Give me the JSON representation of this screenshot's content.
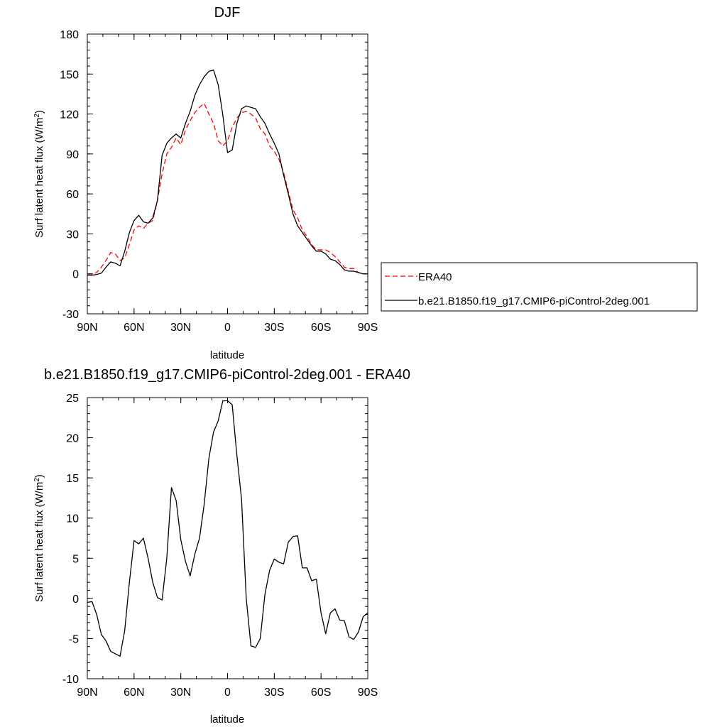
{
  "chart_data": [
    {
      "type": "line",
      "title": "DJF",
      "xlabel": "latitude",
      "ylabel": "Surf latent heat flux (W/m",
      "ylabel_sup": "2",
      "ylabel_close": ")",
      "xlim": [
        90,
        -90
      ],
      "ylim": [
        -30,
        180
      ],
      "yticks": [
        -30,
        0,
        30,
        60,
        90,
        120,
        150,
        180
      ],
      "xticks": [
        90,
        60,
        30,
        0,
        -30,
        -60,
        -90
      ],
      "xticklabels": [
        "90N",
        "60N",
        "30N",
        "0",
        "30S",
        "60S",
        "90S"
      ],
      "legend": "right",
      "series": [
        {
          "name": "ERA40",
          "color": "#ff0000",
          "dash": true,
          "x": [
            90,
            87,
            84,
            81,
            78,
            75,
            72,
            69,
            66,
            63,
            60,
            57,
            54,
            51,
            48,
            45,
            42,
            39,
            36,
            33,
            30,
            27,
            24,
            21,
            18,
            15,
            12,
            9,
            6,
            3,
            0,
            -3,
            -6,
            -9,
            -12,
            -15,
            -18,
            -21,
            -24,
            -27,
            -30,
            -33,
            -36,
            -39,
            -42,
            -45,
            -48,
            -51,
            -54,
            -57,
            -60,
            -63,
            -66,
            -69,
            -72,
            -75,
            -78,
            -81,
            -84,
            -87,
            -90
          ],
          "values": [
            -1,
            -0.5,
            1,
            5,
            10,
            16,
            15,
            10,
            12,
            22,
            33,
            36,
            34,
            38,
            40,
            55,
            75,
            90,
            95,
            102,
            97,
            108,
            115,
            121,
            125,
            128,
            120,
            113,
            100,
            96,
            100,
            110,
            117,
            121,
            122,
            120,
            117,
            109,
            105,
            96,
            92,
            86,
            76,
            62,
            48,
            42,
            33,
            28,
            22,
            18,
            18,
            18,
            16,
            13,
            9,
            5,
            4,
            4,
            1,
            0,
            0
          ]
        },
        {
          "name": "b.e21.B1850.f19_g17.CMIP6-piControl-2deg.001",
          "color": "#000000",
          "dash": false,
          "x": [
            90,
            87,
            84,
            81,
            78,
            75,
            72,
            69,
            66,
            63,
            60,
            57,
            54,
            51,
            48,
            45,
            42,
            39,
            36,
            33,
            30,
            27,
            24,
            21,
            18,
            15,
            12,
            9,
            6,
            3,
            0,
            -3,
            -6,
            -9,
            -12,
            -15,
            -18,
            -21,
            -24,
            -27,
            -30,
            -33,
            -36,
            -39,
            -42,
            -45,
            -48,
            -51,
            -54,
            -57,
            -60,
            -63,
            -66,
            -69,
            -72,
            -75,
            -78,
            -81,
            -84,
            -87,
            -90
          ],
          "values": [
            -1,
            -1,
            -0.5,
            0.5,
            5,
            9,
            8,
            6,
            17,
            31,
            40,
            44,
            39,
            38,
            42,
            55,
            89,
            98,
            102,
            105,
            102,
            113,
            122,
            134,
            142,
            148,
            152,
            153,
            142,
            119,
            91,
            93,
            113,
            124,
            126,
            125,
            124,
            118,
            113,
            105,
            98,
            90,
            74,
            60,
            45,
            36,
            31,
            26,
            21,
            17,
            17,
            15,
            11,
            10,
            7,
            3,
            2,
            2,
            1,
            0,
            0
          ]
        }
      ],
      "legend_entries": [
        "ERA40",
        "b.e21.B1850.f19_g17.CMIP6-piControl-2deg.001"
      ]
    },
    {
      "type": "line",
      "title": "b.e21.B1850.f19_g17.CMIP6-piControl-2deg.001 - ERA40",
      "xlabel": "latitude",
      "ylabel": "Surf latent heat flux (W/m",
      "ylabel_sup": "2",
      "ylabel_close": ")",
      "xlim": [
        90,
        -90
      ],
      "ylim": [
        -10,
        25
      ],
      "yticks": [
        -10,
        -5,
        0,
        5,
        10,
        15,
        20,
        25
      ],
      "xticks": [
        90,
        60,
        30,
        0,
        -30,
        -60,
        -90
      ],
      "xticklabels": [
        "90N",
        "60N",
        "30N",
        "0",
        "30S",
        "60S",
        "90S"
      ],
      "series": [
        {
          "color": "#000000",
          "dash": false,
          "x": [
            90,
            87,
            84,
            81,
            78,
            75,
            72,
            69,
            66,
            63,
            60,
            57,
            54,
            51,
            48,
            45,
            42,
            39,
            36,
            33,
            30,
            27,
            24,
            21,
            18,
            15,
            12,
            9,
            6,
            3,
            0,
            -3,
            -6,
            -9,
            -12,
            -15,
            -18,
            -21,
            -24,
            -27,
            -30,
            -33,
            -36,
            -39,
            -42,
            -45,
            -48,
            -51,
            -54,
            -57,
            -60,
            -63,
            -66,
            -69,
            -72,
            -75,
            -78,
            -81,
            -84,
            -87,
            -90
          ],
          "values": [
            -0.5,
            -0.4,
            -2,
            -4.5,
            -5.3,
            -6.6,
            -6.9,
            -7.2,
            -4,
            2,
            7.2,
            6.8,
            7.5,
            5,
            2,
            0.1,
            -0.2,
            5,
            13.8,
            12.2,
            7.3,
            4.6,
            2.8,
            5.5,
            7.5,
            11.7,
            17.4,
            20.7,
            22.1,
            24.6,
            24.6,
            24.1,
            17.8,
            12.3,
            0,
            -5.9,
            -6.1,
            -5,
            0.5,
            3.5,
            4.9,
            4.5,
            4.3,
            7,
            7.7,
            7.8,
            3.8,
            3.8,
            2.2,
            2.4,
            -1.8,
            -4.4,
            -1.8,
            -1.3,
            -2.7,
            -2.8,
            -4.8,
            -5.1,
            -4.2,
            -2.3,
            -1.8
          ]
        }
      ]
    }
  ]
}
